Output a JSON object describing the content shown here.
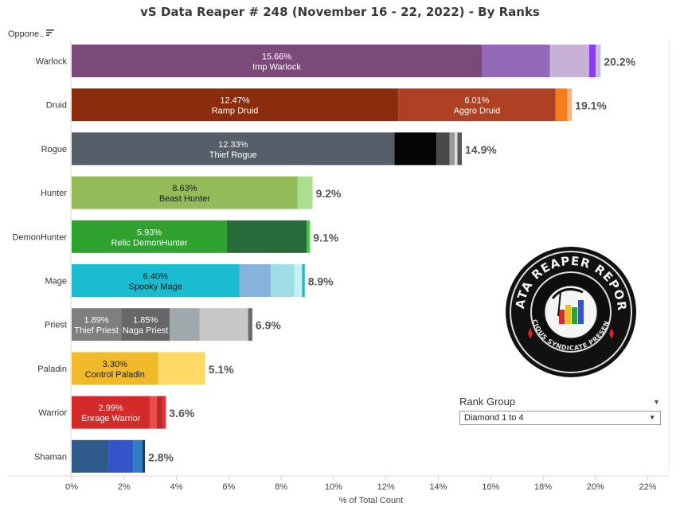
{
  "title": "vS Data Reaper #  248 (November 16 - 22, 2022) - By Ranks",
  "sort_control": {
    "label": "Oppone..",
    "icon": "sort-icon"
  },
  "filter": {
    "title": "Rank Group",
    "selected": "Diamond 1 to 4",
    "icon": "dropdown-caret-icon"
  },
  "logo": {
    "icon": "data-reaper-report-logo",
    "text_top": "DATA REAPER REPORT",
    "text_bottom": "VICIOUS SYNDICATE PRESENTS"
  },
  "chart_data": {
    "type": "bar",
    "orientation": "horizontal",
    "stacked": true,
    "title": "vS Data Reaper #  248 (November 16 - 22, 2022) - By Ranks",
    "xlabel": "% of Total Count",
    "ylabel": "",
    "xlim": [
      0,
      22.5
    ],
    "x_ticks": [
      "0%",
      "2%",
      "4%",
      "6%",
      "8%",
      "10%",
      "12%",
      "14%",
      "16%",
      "18%",
      "20%",
      "22%"
    ],
    "grid": false,
    "legend": "none",
    "categories": [
      "Warlock",
      "Druid",
      "Rogue",
      "Hunter",
      "DemonHunter",
      "Mage",
      "Priest",
      "Paladin",
      "Warrior",
      "Shaman"
    ],
    "bars": [
      {
        "class": "Warlock",
        "total_label": "20.2%",
        "segments": [
          {
            "value": 15.66,
            "color": "#7b4a7b",
            "pct_label": "15.66%",
            "name": "Imp Warlock"
          },
          {
            "value": 2.6,
            "color": "#9468b8"
          },
          {
            "value": 1.5,
            "color": "#c7b1d6"
          },
          {
            "value": 0.25,
            "color": "#8f3cf0"
          },
          {
            "value": 0.19,
            "color": "#ccbbe0"
          }
        ]
      },
      {
        "class": "Druid",
        "total_label": "19.1%",
        "segments": [
          {
            "value": 12.47,
            "color": "#8b2d0c",
            "pct_label": "12.47%",
            "name": "Ramp Druid"
          },
          {
            "value": 6.01,
            "color": "#ae4124",
            "pct_label": "6.01%",
            "name": "Aggro Druid"
          },
          {
            "value": 0.45,
            "color": "#f57d1e"
          },
          {
            "value": 0.17,
            "color": "#f9b67a"
          }
        ]
      },
      {
        "class": "Rogue",
        "total_label": "14.9%",
        "segments": [
          {
            "value": 12.33,
            "color": "#555e69",
            "pct_label": "12.33%",
            "name": "Thief Rogue"
          },
          {
            "value": 1.6,
            "color": "#050505"
          },
          {
            "value": 0.5,
            "color": "#4a4a4a"
          },
          {
            "value": 0.2,
            "color": "#9a9a9a"
          },
          {
            "value": 0.1,
            "color": "#e0e0e0"
          },
          {
            "value": 0.17,
            "color": "#5a5a5a"
          }
        ]
      },
      {
        "class": "Hunter",
        "total_label": "9.2%",
        "segments": [
          {
            "value": 8.63,
            "color": "#93bb5a",
            "pct_label": "8.63%",
            "name": "Beast Hunter"
          },
          {
            "value": 0.57,
            "color": "#a9df8e"
          }
        ]
      },
      {
        "class": "DemonHunter",
        "total_label": "9.1%",
        "segments": [
          {
            "value": 5.93,
            "color": "#2ea12e",
            "pct_label": "5.93%",
            "name": "Relic DemonHunter"
          },
          {
            "value": 3.05,
            "color": "#276b3a"
          },
          {
            "value": 0.12,
            "color": "#44cc44"
          }
        ]
      },
      {
        "class": "Mage",
        "total_label": "8.9%",
        "segments": [
          {
            "value": 6.4,
            "color": "#1bbbd0",
            "pct_label": "6.40%",
            "name": "Spooky Mage"
          },
          {
            "value": 1.2,
            "color": "#86b2db"
          },
          {
            "value": 0.9,
            "color": "#9fdee7"
          },
          {
            "value": 0.3,
            "color": "#c5f1f5"
          },
          {
            "value": 0.1,
            "color": "#1fb5c7"
          }
        ]
      },
      {
        "class": "Priest",
        "total_label": "6.9%",
        "segments": [
          {
            "value": 1.89,
            "color": "#7f7f7f",
            "pct_label": "1.89%",
            "name": "Thief Priest"
          },
          {
            "value": 1.85,
            "color": "#676767",
            "pct_label": "1.85%",
            "name": "Naga Priest"
          },
          {
            "value": 1.15,
            "color": "#a2a9ad"
          },
          {
            "value": 1.85,
            "color": "#c7c7c7"
          },
          {
            "value": 0.16,
            "color": "#6b6b6b"
          }
        ]
      },
      {
        "class": "Paladin",
        "total_label": "5.1%",
        "segments": [
          {
            "value": 3.3,
            "color": "#f0ba2a",
            "pct_label": "3.30%",
            "name": "Control Paladin"
          },
          {
            "value": 1.8,
            "color": "#ffd866"
          }
        ]
      },
      {
        "class": "Warrior",
        "total_label": "3.6%",
        "segments": [
          {
            "value": 2.99,
            "color": "#d42a2a",
            "pct_label": "2.99%",
            "name": "Enrage Warrior"
          },
          {
            "value": 0.26,
            "color": "#ef4a4a"
          },
          {
            "value": 0.2,
            "color": "#b82a2a"
          },
          {
            "value": 0.15,
            "color": "#e03030"
          }
        ]
      },
      {
        "class": "Shaman",
        "total_label": "2.8%",
        "segments": [
          {
            "value": 1.4,
            "color": "#2e5b8c"
          },
          {
            "value": 0.95,
            "color": "#3455c9"
          },
          {
            "value": 0.35,
            "color": "#2f7ec4"
          },
          {
            "value": 0.1,
            "color": "#1a3a6c"
          }
        ]
      }
    ]
  }
}
